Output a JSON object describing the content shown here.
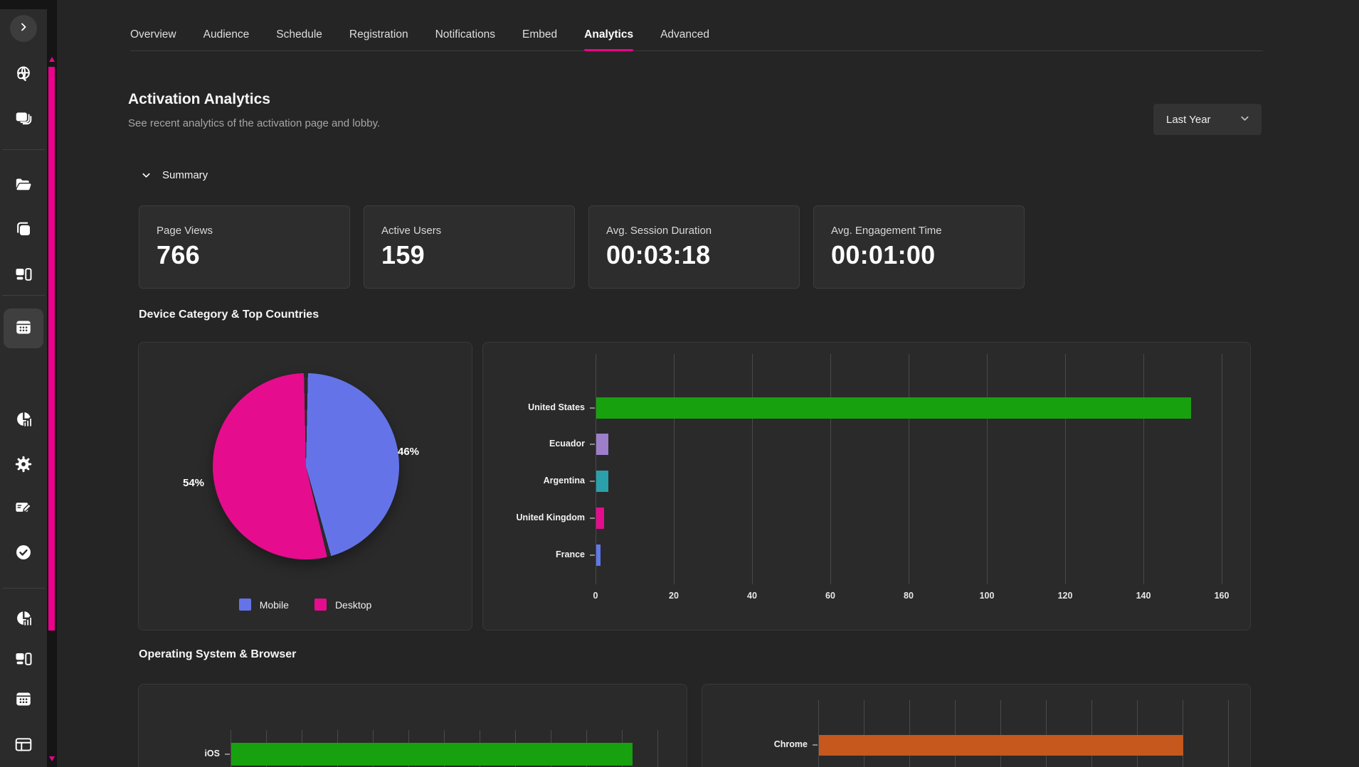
{
  "tabs": [
    {
      "label": "Overview",
      "active": false
    },
    {
      "label": "Audience",
      "active": false
    },
    {
      "label": "Schedule",
      "active": false
    },
    {
      "label": "Registration",
      "active": false
    },
    {
      "label": "Notifications",
      "active": false
    },
    {
      "label": "Embed",
      "active": false
    },
    {
      "label": "Analytics",
      "active": true
    },
    {
      "label": "Advanced",
      "active": false
    }
  ],
  "header": {
    "title": "Activation Analytics",
    "subtitle": "See recent analytics of the activation page and lobby.",
    "date_range": {
      "selected": "Last Year"
    }
  },
  "summary": {
    "section_label": "Summary",
    "cards": [
      {
        "label": "Page Views",
        "value": "766"
      },
      {
        "label": "Active Users",
        "value": "159"
      },
      {
        "label": "Avg. Session Duration",
        "value": "00:03:18"
      },
      {
        "label": "Avg. Engagement Time",
        "value": "00:01:00"
      }
    ]
  },
  "section_headings": {
    "device_countries": "Device Category & Top Countries",
    "os_browser": "Operating System & Browser"
  },
  "accent_color": "#ec008c",
  "chart_data": [
    {
      "id": "device-category",
      "type": "pie",
      "slices": [
        {
          "label": "Mobile",
          "value": 46,
          "display": "46%",
          "color": "#6474e8"
        },
        {
          "label": "Desktop",
          "value": 54,
          "display": "54%",
          "color": "#e60c8e"
        }
      ],
      "legend_position": "bottom"
    },
    {
      "id": "top-countries",
      "type": "bar",
      "orientation": "horizontal",
      "categories": [
        "United States",
        "Ecuador",
        "Argentina",
        "United Kingdom",
        "France"
      ],
      "values": [
        152,
        3,
        3,
        2,
        1
      ],
      "colors": [
        "#18a10e",
        "#9d7fc9",
        "#2aa1aa",
        "#e60c8e",
        "#5f78ea"
      ],
      "xlim": [
        0,
        160
      ],
      "xticks": [
        0,
        20,
        40,
        60,
        80,
        100,
        120,
        140,
        160
      ],
      "grid": true
    },
    {
      "id": "operating-system",
      "type": "bar",
      "orientation": "horizontal",
      "categories": [
        "iOS"
      ],
      "bars": [
        {
          "label": "iOS",
          "color": "#18a10e",
          "fraction": 0.94
        }
      ],
      "gridline_count": 13
    },
    {
      "id": "browser",
      "type": "bar",
      "orientation": "horizontal",
      "categories": [
        "Chrome"
      ],
      "bars": [
        {
          "label": "Chrome",
          "color": "#c6581d",
          "fraction": 0.889
        }
      ],
      "gridline_count": 10
    }
  ]
}
